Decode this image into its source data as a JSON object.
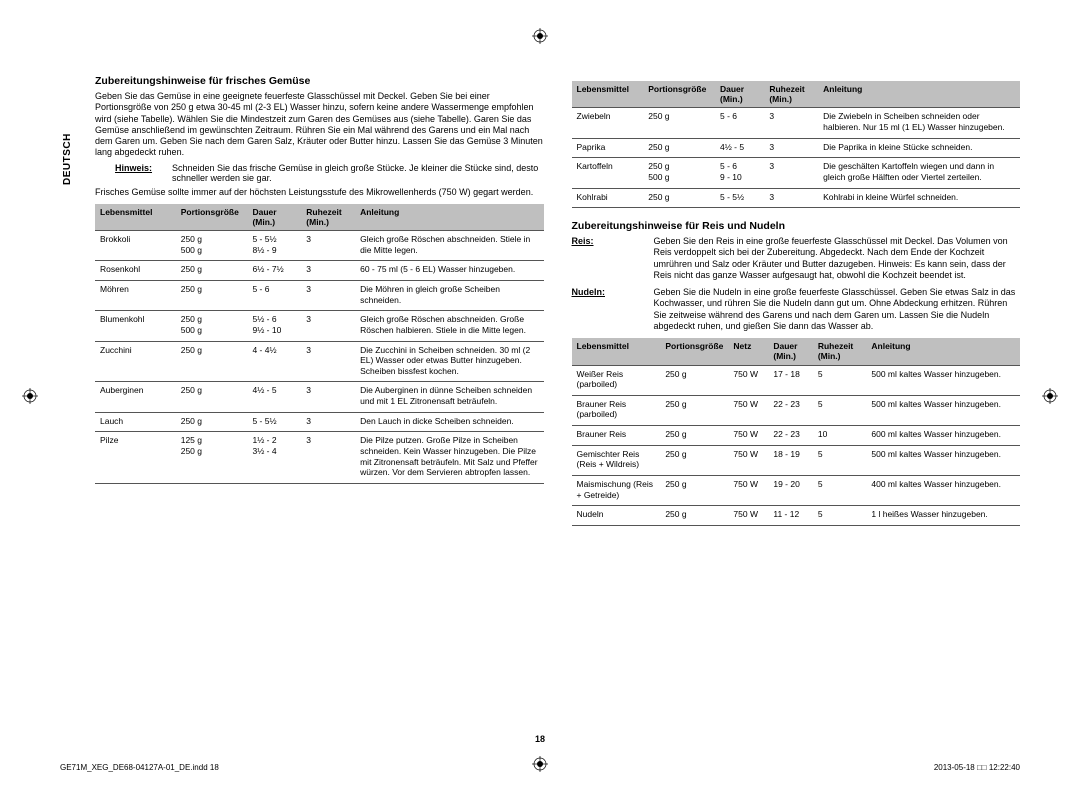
{
  "sidebar": {
    "language": "DEUTSCH"
  },
  "left": {
    "title": "Zubereitungshinweise für frisches Gemüse",
    "para1": "Geben Sie das Gemüse in eine geeignete feuerfeste Glasschüssel mit Deckel. Geben Sie bei einer Portionsgröße von 250 g etwa 30-45 ml (2-3 EL) Wasser hinzu, sofern keine andere Wassermenge empfohlen wird (siehe Tabelle). Wählen Sie die Mindestzeit zum Garen des Gemüses aus (siehe Tabelle). Garen Sie das Gemüse anschließend im gewünschten Zeitraum. Rühren Sie ein Mal während des Garens und ein Mal nach dem Garen um. Geben Sie nach dem Garen Salz, Kräuter oder Butter hinzu. Lassen Sie das Gemüse 3 Minuten lang abgedeckt ruhen.",
    "hinweisLabel": "Hinweis:",
    "hinweisText": "Schneiden Sie das frische Gemüse in gleich große Stücke. Je kleiner die Stücke sind, desto schneller werden sie gar.",
    "para2": "Frisches Gemüse sollte immer auf der höchsten Leistungsstufe des Mikrowellenherds (750 W) gegart werden.",
    "table": {
      "headers": [
        "Lebensmittel",
        "Portionsgröße",
        "Dauer (Min.)",
        "Ruhezeit (Min.)",
        "Anleitung"
      ],
      "rows": [
        [
          "Brokkoli",
          "250 g\n500 g",
          "5 - 5½\n8½ - 9",
          "3",
          "Gleich große Röschen abschneiden. Stiele in die Mitte legen."
        ],
        [
          "Rosenkohl",
          "250 g",
          "6½ - 7½",
          "3",
          "60 - 75 ml (5 - 6 EL) Wasser hinzugeben."
        ],
        [
          "Möhren",
          "250 g",
          "5 - 6",
          "3",
          "Die Möhren in gleich große Scheiben schneiden."
        ],
        [
          "Blumenkohl",
          "250 g\n500 g",
          "5½ - 6\n9½ - 10",
          "3",
          "Gleich große Röschen abschneiden. Große Röschen halbieren. Stiele in die Mitte legen."
        ],
        [
          "Zucchini",
          "250 g",
          "4 - 4½",
          "3",
          "Die Zucchini in Scheiben schneiden. 30 ml (2 EL) Wasser oder etwas Butter hinzugeben. Scheiben bissfest kochen."
        ],
        [
          "Auberginen",
          "250 g",
          "4½ - 5",
          "3",
          "Die Auberginen in dünne Scheiben schneiden und mit 1 EL Zitronensaft beträufeln."
        ],
        [
          "Lauch",
          "250 g",
          "5 - 5½",
          "3",
          "Den Lauch in dicke Scheiben schneiden."
        ],
        [
          "Pilze",
          "125 g\n250 g",
          "1½ - 2\n3½ - 4",
          "3",
          "Die Pilze putzen. Große Pilze in Scheiben schneiden. Kein Wasser hinzugeben. Die Pilze mit Zitronensaft beträufeln. Mit Salz und Pfeffer würzen. Vor dem Servieren abtropfen lassen."
        ]
      ]
    }
  },
  "right": {
    "tableA": {
      "headers": [
        "Lebensmittel",
        "Portionsgröße",
        "Dauer (Min.)",
        "Ruhezeit (Min.)",
        "Anleitung"
      ],
      "rows": [
        [
          "Zwiebeln",
          "250 g",
          "5 - 6",
          "3",
          "Die Zwiebeln in Scheiben schneiden oder halbieren. Nur 15 ml (1 EL) Wasser hinzugeben."
        ],
        [
          "Paprika",
          "250 g",
          "4½ - 5",
          "3",
          "Die Paprika in kleine Stücke schneiden."
        ],
        [
          "Kartoffeln",
          "250 g\n500 g",
          "5 - 6\n9 - 10",
          "3",
          "Die geschälten Kartoffeln wiegen und dann in gleich große Hälften oder Viertel zerteilen."
        ],
        [
          "Kohlrabi",
          "250 g",
          "5 - 5½",
          "3",
          "Kohlrabi in kleine Würfel schneiden."
        ]
      ]
    },
    "title2": "Zubereitungshinweise für Reis und Nudeln",
    "reisLabel": "Reis:",
    "reisText": "Geben Sie den Reis in eine große feuerfeste Glasschüssel mit Deckel. Das Volumen von Reis verdoppelt sich bei der Zubereitung. Abgedeckt. Nach dem Ende der Kochzeit umrühren und Salz oder Kräuter und Butter dazugeben. Hinweis: Es kann sein, dass der Reis nicht das ganze Wasser aufgesaugt hat, obwohl die Kochzeit beendet ist.",
    "nudelnLabel": "Nudeln:",
    "nudelnText": "Geben Sie die Nudeln in eine große feuerfeste Glasschüssel. Geben Sie etwas Salz in das Kochwasser, und rühren Sie die Nudeln dann gut um. Ohne Abdeckung erhitzen. Rühren Sie zeitweise während des Garens und nach dem Garen um. Lassen Sie die Nudeln abgedeckt ruhen, und gießen Sie dann das Wasser ab.",
    "tableB": {
      "headers": [
        "Lebensmittel",
        "Portionsgröße",
        "Netz",
        "Dauer (Min.)",
        "Ruhezeit (Min.)",
        "Anleitung"
      ],
      "rows": [
        [
          "Weißer Reis (parboiled)",
          "250 g",
          "750 W",
          "17 - 18",
          "5",
          "500 ml kaltes Wasser hinzugeben."
        ],
        [
          "Brauner Reis (parboiled)",
          "250 g",
          "750 W",
          "22 - 23",
          "5",
          "500 ml kaltes Wasser hinzugeben."
        ],
        [
          "Brauner Reis",
          "250 g",
          "750 W",
          "22 - 23",
          "10",
          "600 ml kaltes Wasser hinzugeben."
        ],
        [
          "Gemischter Reis (Reis + Wildreis)",
          "250 g",
          "750 W",
          "18 - 19",
          "5",
          "500 ml kaltes Wasser hinzugeben."
        ],
        [
          "Maismischung (Reis + Getreide)",
          "250 g",
          "750 W",
          "19 - 20",
          "5",
          "400 ml kaltes Wasser hinzugeben."
        ],
        [
          "Nudeln",
          "250 g",
          "750 W",
          "11 - 12",
          "5",
          "1 l heißes Wasser hinzugeben."
        ]
      ]
    }
  },
  "pageNumber": "18",
  "footerLeft": "GE71M_XEG_DE68-04127A-01_DE.indd   18",
  "footerRight": "2013-05-18   □□ 12:22:40"
}
